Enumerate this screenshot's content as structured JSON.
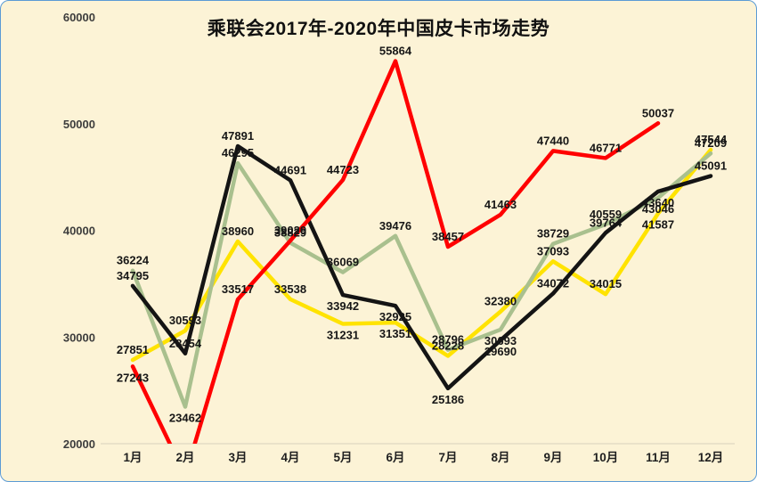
{
  "page": {
    "background": "#FCF3D6",
    "border_color": "#5B9BD5"
  },
  "chart_data": {
    "type": "line",
    "title": "乘联会2017年-2020年中国皮卡市场走势",
    "xlabel": "",
    "ylabel": "",
    "categories": [
      "1月",
      "2月",
      "3月",
      "4月",
      "5月",
      "6月",
      "7月",
      "8月",
      "9月",
      "10月",
      "11月",
      "12月"
    ],
    "ylim": [
      20000,
      60000
    ],
    "y_ticks": [
      20000,
      30000,
      40000,
      50000,
      60000
    ],
    "grid": false,
    "legend": "none",
    "data_labels": true,
    "series": [
      {
        "name": "yellow",
        "color": "#FFE300",
        "values": [
          27851,
          30593,
          38960,
          33538,
          31231,
          31351,
          28228,
          32380,
          37093,
          34015,
          41587,
          47544
        ]
      },
      {
        "name": "green",
        "color": "#A9C08E",
        "values": [
          36224,
          23462,
          46295,
          38829,
          36069,
          39476,
          28796,
          30693,
          38729,
          40559,
          43046,
          47209
        ]
      },
      {
        "name": "black",
        "color": "#141414",
        "values": [
          34795,
          28454,
          47891,
          44691,
          33942,
          32925,
          25186,
          29690,
          34072,
          39764,
          43640,
          45091
        ]
      },
      {
        "name": "red",
        "color": "#FF0000",
        "values": [
          27243,
          null,
          33517,
          39029,
          44723,
          55864,
          38457,
          41463,
          47440,
          46771,
          50037,
          null
        ]
      }
    ],
    "label_below": {
      "yellow": [
        4,
        5,
        10
      ],
      "green": [
        1,
        7,
        10
      ],
      "black": [
        4,
        5,
        6,
        7,
        10
      ],
      "red": [
        0
      ]
    }
  }
}
